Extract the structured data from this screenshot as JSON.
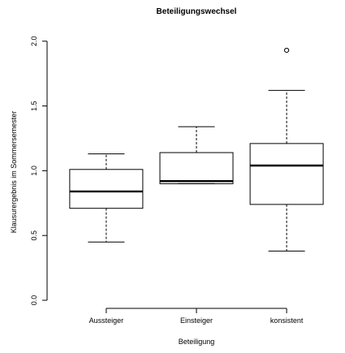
{
  "chart_data": {
    "type": "boxplot",
    "title": "Beteiligungswechsel",
    "xlabel": "Beteiligung",
    "ylabel": "Klausurergebnis im Sommersemester",
    "ylim": [
      -0.05,
      2.08
    ],
    "yticks": [
      "0.0",
      "0.5",
      "1.0",
      "1.5",
      "2.0"
    ],
    "grid": false,
    "categories": [
      "Aussteiger",
      "Einsteiger",
      "konsistent"
    ],
    "boxes": [
      {
        "category": "Aussteiger",
        "whisker_low": 0.45,
        "q1": 0.71,
        "median": 0.84,
        "q3": 1.01,
        "whisker_high": 1.13,
        "outliers": []
      },
      {
        "category": "Einsteiger",
        "whisker_low": 0.9,
        "q1": 0.9,
        "median": 0.92,
        "q3": 1.14,
        "whisker_high": 1.34,
        "outliers": []
      },
      {
        "category": "konsistent",
        "whisker_low": 0.38,
        "q1": 0.74,
        "median": 1.04,
        "q3": 1.21,
        "whisker_high": 1.62,
        "outliers": [
          1.93
        ]
      }
    ]
  }
}
